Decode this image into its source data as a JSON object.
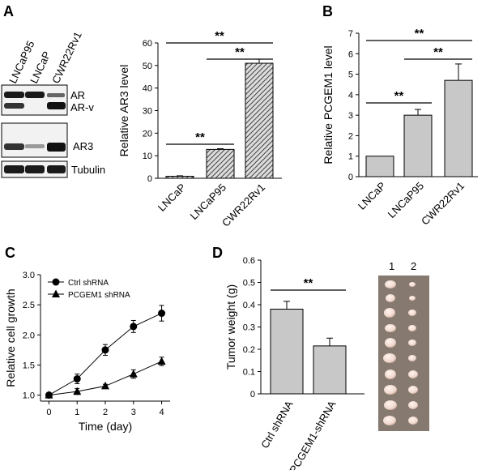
{
  "panels": {
    "A": {
      "letter": "A"
    },
    "B": {
      "letter": "B"
    },
    "C": {
      "letter": "C"
    },
    "D": {
      "letter": "D"
    }
  },
  "blot": {
    "lanes": [
      "LNCaP95",
      "LNCaP",
      "CWR22Rv1"
    ],
    "bands": [
      "AR",
      "AR-v",
      "AR3",
      "Tubulin"
    ]
  },
  "photo": {
    "lanes": [
      "1",
      "2"
    ]
  },
  "colors": {
    "bar_gray": "#c8c8c8",
    "hatch_fill": "#dcdcdc",
    "photo_bg": "#857970",
    "tumor": "#f0d9cf"
  },
  "chart_data": [
    {
      "id": "A_bar",
      "type": "bar",
      "categories": [
        "LNCaP",
        "LNCaP95",
        "CWR22Rv1"
      ],
      "values": [
        0.9,
        12.8,
        51
      ],
      "errors": [
        0.2,
        0.3,
        1.8
      ],
      "ylabel": "Relative AR3 level",
      "ylim": [
        0,
        60
      ],
      "yticks": [
        0,
        10,
        20,
        30,
        40,
        50,
        60
      ],
      "fill": "hatched",
      "significance": [
        {
          "from": 0,
          "to": 1,
          "label": "**"
        },
        {
          "from": 1,
          "to": 2,
          "label": "**"
        },
        {
          "from": 0,
          "to": 2,
          "label": "**"
        }
      ]
    },
    {
      "id": "B_bar",
      "type": "bar",
      "categories": [
        "LNCaP",
        "LNCaP95",
        "CWR22Rv1"
      ],
      "values": [
        1.0,
        3.0,
        4.7
      ],
      "errors": [
        0,
        0.28,
        0.8
      ],
      "ylabel": "Relative PCGEM1 level",
      "ylim": [
        0,
        7
      ],
      "yticks": [
        0,
        1,
        2,
        3,
        4,
        5,
        6,
        7
      ],
      "significance": [
        {
          "from": 0,
          "to": 1,
          "label": "**"
        },
        {
          "from": 1,
          "to": 2,
          "label": "**"
        },
        {
          "from": 0,
          "to": 2,
          "label": "**"
        }
      ]
    },
    {
      "id": "C_line",
      "type": "line",
      "x": [
        0,
        1,
        2,
        3,
        4
      ],
      "xlabel": "Time (day)",
      "ylabel": "Relative cell growth",
      "xlim": [
        -0.3,
        4.3
      ],
      "ylim": [
        0.9,
        3.0
      ],
      "xticks": [
        0,
        1,
        2,
        3,
        4
      ],
      "yticks": [
        1.0,
        1.5,
        2.0,
        2.5,
        3.0
      ],
      "ytick_labels": [
        "1.0",
        "1.5",
        "2.0",
        "2.5",
        "3.0"
      ],
      "legend": "top-left",
      "series": [
        {
          "name": "Ctrl shRNA",
          "marker": "circle",
          "values": [
            1.0,
            1.27,
            1.75,
            2.14,
            2.36
          ],
          "errors": [
            0.02,
            0.08,
            0.09,
            0.1,
            0.13
          ]
        },
        {
          "name": "PCGEM1 shRNA",
          "marker": "triangle",
          "values": [
            1.0,
            1.06,
            1.15,
            1.35,
            1.56
          ],
          "errors": [
            0.02,
            0.05,
            0.03,
            0.07,
            0.07
          ]
        }
      ]
    },
    {
      "id": "D_bar",
      "type": "bar",
      "categories": [
        "Ctrl shRNA",
        "PCGEM1-shRNA"
      ],
      "values": [
        0.38,
        0.215
      ],
      "errors": [
        0.035,
        0.035
      ],
      "ylabel": "Tumor weight (g)",
      "ylim": [
        0,
        0.6
      ],
      "yticks": [
        0,
        0.1,
        0.2,
        0.3,
        0.4,
        0.5,
        0.6
      ],
      "ytick_labels": [
        "0",
        "0.1",
        "0.2",
        "0.3",
        "0.4",
        "0.5",
        "0.6"
      ],
      "significance": [
        {
          "from": 0,
          "to": 1,
          "label": "**"
        }
      ]
    }
  ]
}
